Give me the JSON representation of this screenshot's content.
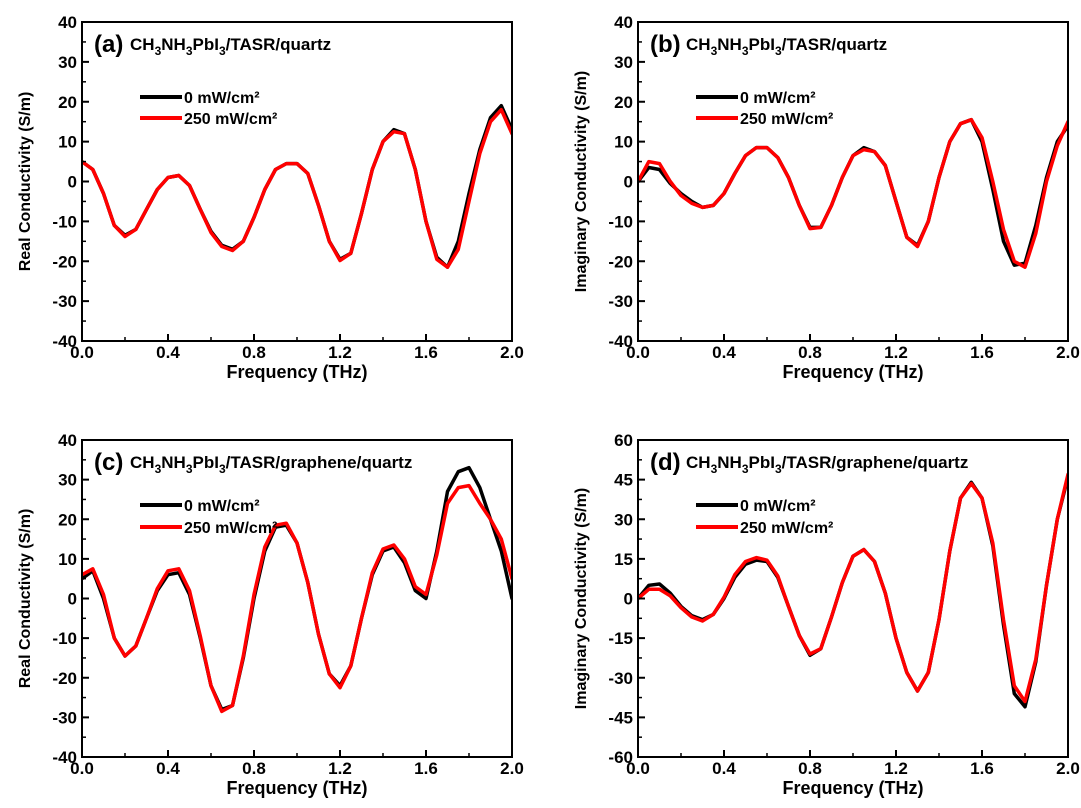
{
  "chart_data": [
    {
      "panel": "(a)",
      "type": "line",
      "title_parts": [
        "CH",
        "3",
        "NH",
        "3",
        "PbI",
        "3",
        "/TASR/quartz"
      ],
      "xlabel": "Frequency (THz)",
      "ylabel": "Real Conductivity (S/m)",
      "xlim": [
        0.0,
        2.0
      ],
      "ylim": [
        -40,
        40
      ],
      "xticks": [
        "0.0",
        "0.4",
        "0.8",
        "1.2",
        "1.6",
        "2.0"
      ],
      "yticks": [
        "-40",
        "-30",
        "-20",
        "-10",
        "0",
        "10",
        "20",
        "30",
        "40"
      ],
      "legend": [
        "0 mW/cm²",
        "250 mW/cm²"
      ],
      "series": [
        {
          "name": "0 mW/cm²",
          "color": "#000000",
          "x": [
            0.0,
            0.05,
            0.1,
            0.15,
            0.2,
            0.25,
            0.3,
            0.35,
            0.4,
            0.45,
            0.5,
            0.55,
            0.6,
            0.65,
            0.7,
            0.75,
            0.8,
            0.85,
            0.9,
            0.95,
            1.0,
            1.05,
            1.1,
            1.15,
            1.2,
            1.25,
            1.3,
            1.35,
            1.4,
            1.45,
            1.5,
            1.55,
            1.6,
            1.65,
            1.7,
            1.75,
            1.8,
            1.85,
            1.9,
            1.95,
            2.0
          ],
          "y": [
            5,
            3,
            -3,
            -11,
            -13.5,
            -12,
            -7,
            -2,
            1,
            1.5,
            -1,
            -7,
            -12.5,
            -16,
            -17,
            -15,
            -9,
            -2,
            3,
            4.5,
            4.5,
            2,
            -6,
            -15,
            -19.5,
            -18,
            -8,
            3,
            10,
            13,
            12,
            3,
            -10,
            -19,
            -21.5,
            -15,
            -3,
            8,
            16,
            19,
            13
          ]
        },
        {
          "name": "250 mW/cm²",
          "color": "#ff0000",
          "x": [
            0.0,
            0.05,
            0.1,
            0.15,
            0.2,
            0.25,
            0.3,
            0.35,
            0.4,
            0.45,
            0.5,
            0.55,
            0.6,
            0.65,
            0.7,
            0.75,
            0.8,
            0.85,
            0.9,
            0.95,
            1.0,
            1.05,
            1.1,
            1.15,
            1.2,
            1.25,
            1.3,
            1.35,
            1.4,
            1.45,
            1.5,
            1.55,
            1.6,
            1.65,
            1.7,
            1.75,
            1.8,
            1.85,
            1.9,
            1.95,
            2.0
          ],
          "y": [
            5,
            3,
            -3,
            -11,
            -13.8,
            -12,
            -7,
            -2,
            1,
            1.5,
            -1,
            -7,
            -12.8,
            -16.3,
            -17.3,
            -15,
            -9,
            -2,
            3,
            4.5,
            4.5,
            2,
            -6,
            -15,
            -19.8,
            -18,
            -8,
            3,
            10,
            12.5,
            12,
            3,
            -10,
            -19.5,
            -21.5,
            -17,
            -5,
            7,
            15,
            18,
            12
          ]
        }
      ]
    },
    {
      "panel": "(b)",
      "type": "line",
      "title_parts": [
        "CH",
        "3",
        "NH",
        "3",
        "PbI",
        "3",
        "/TASR/quartz"
      ],
      "xlabel": "Frequency (THz)",
      "ylabel": "Imaginary Conductivity (S/m)",
      "xlim": [
        0.0,
        2.0
      ],
      "ylim": [
        -40,
        40
      ],
      "xticks": [
        "0.0",
        "0.4",
        "0.8",
        "1.2",
        "1.6",
        "2.0"
      ],
      "yticks": [
        "-40",
        "-30",
        "-20",
        "-10",
        "0",
        "10",
        "20",
        "30",
        "40"
      ],
      "legend": [
        "0 mW/cm²",
        "250 mW/cm²"
      ],
      "series": [
        {
          "name": "0 mW/cm²",
          "color": "#000000",
          "x": [
            0.0,
            0.05,
            0.1,
            0.15,
            0.2,
            0.25,
            0.3,
            0.35,
            0.4,
            0.45,
            0.5,
            0.55,
            0.6,
            0.65,
            0.7,
            0.75,
            0.8,
            0.85,
            0.9,
            0.95,
            1.0,
            1.05,
            1.1,
            1.15,
            1.2,
            1.25,
            1.3,
            1.35,
            1.4,
            1.45,
            1.5,
            1.55,
            1.6,
            1.65,
            1.7,
            1.75,
            1.8,
            1.85,
            1.9,
            1.95,
            2.0
          ],
          "y": [
            0,
            3.5,
            3,
            -0.5,
            -3,
            -5,
            -6.5,
            -6,
            -3,
            2,
            6.5,
            8.5,
            8.5,
            6,
            1,
            -6,
            -11.5,
            -11.5,
            -6,
            1,
            6.5,
            8.5,
            7.5,
            4,
            -5,
            -14,
            -16,
            -10,
            1,
            10,
            14.5,
            15.5,
            10,
            -2,
            -15,
            -21,
            -20.5,
            -11,
            1,
            10,
            14
          ]
        },
        {
          "name": "250 mW/cm²",
          "color": "#ff0000",
          "x": [
            0.0,
            0.05,
            0.1,
            0.15,
            0.2,
            0.25,
            0.3,
            0.35,
            0.4,
            0.45,
            0.5,
            0.55,
            0.6,
            0.65,
            0.7,
            0.75,
            0.8,
            0.85,
            0.9,
            0.95,
            1.0,
            1.05,
            1.1,
            1.15,
            1.2,
            1.25,
            1.3,
            1.35,
            1.4,
            1.45,
            1.5,
            1.55,
            1.6,
            1.65,
            1.7,
            1.75,
            1.8,
            1.85,
            1.9,
            1.95,
            2.0
          ],
          "y": [
            0,
            5,
            4.5,
            0,
            -3.5,
            -5.5,
            -6.5,
            -6,
            -3,
            2,
            6.5,
            8.5,
            8.5,
            6,
            1,
            -6,
            -11.8,
            -11.5,
            -6,
            1,
            6.5,
            8,
            7.5,
            4,
            -5,
            -14,
            -16.3,
            -10,
            1,
            10,
            14.5,
            15.5,
            11,
            0,
            -12,
            -20,
            -21.5,
            -13,
            0,
            9,
            15
          ]
        }
      ]
    },
    {
      "panel": "(c)",
      "type": "line",
      "title_parts": [
        "CH",
        "3",
        "NH",
        "3",
        "PbI",
        "3",
        "/TASR/graphene/quartz"
      ],
      "xlabel": "Frequency (THz)",
      "ylabel": "Real Conductivity (S/m)",
      "xlim": [
        0.0,
        2.0
      ],
      "ylim": [
        -40,
        40
      ],
      "xticks": [
        "0.0",
        "0.4",
        "0.8",
        "1.2",
        "1.6",
        "2.0"
      ],
      "yticks": [
        "-40",
        "-30",
        "-20",
        "-10",
        "0",
        "10",
        "20",
        "30",
        "40"
      ],
      "legend": [
        "0 mW/cm²",
        "250 mW/cm²"
      ],
      "series": [
        {
          "name": "0 mW/cm²",
          "color": "#000000",
          "x": [
            0.0,
            0.05,
            0.1,
            0.15,
            0.2,
            0.25,
            0.3,
            0.35,
            0.4,
            0.45,
            0.5,
            0.55,
            0.6,
            0.65,
            0.7,
            0.75,
            0.8,
            0.85,
            0.9,
            0.95,
            1.0,
            1.05,
            1.1,
            1.15,
            1.2,
            1.25,
            1.3,
            1.35,
            1.4,
            1.45,
            1.5,
            1.55,
            1.6,
            1.65,
            1.7,
            1.75,
            1.8,
            1.85,
            1.9,
            1.95,
            2.0
          ],
          "y": [
            5,
            7,
            0,
            -10,
            -14.5,
            -12,
            -5,
            2,
            6,
            6.5,
            1,
            -10,
            -22,
            -28,
            -27,
            -15,
            0,
            12,
            18,
            18.5,
            14,
            4,
            -9,
            -19,
            -22,
            -17,
            -5,
            6,
            12,
            13,
            9,
            2,
            0,
            12,
            27,
            32,
            33,
            28,
            20,
            12,
            0
          ]
        },
        {
          "name": "250 mW/cm²",
          "color": "#ff0000",
          "x": [
            0.0,
            0.05,
            0.1,
            0.15,
            0.2,
            0.25,
            0.3,
            0.35,
            0.4,
            0.45,
            0.5,
            0.55,
            0.6,
            0.65,
            0.7,
            0.75,
            0.8,
            0.85,
            0.9,
            0.95,
            1.0,
            1.05,
            1.1,
            1.15,
            1.2,
            1.25,
            1.3,
            1.35,
            1.4,
            1.45,
            1.5,
            1.55,
            1.6,
            1.65,
            1.7,
            1.75,
            1.8,
            1.85,
            1.9,
            1.95,
            2.0
          ],
          "y": [
            6,
            7.5,
            1,
            -10,
            -14.5,
            -12,
            -5,
            2.5,
            7,
            7.5,
            2,
            -9.5,
            -22,
            -28.5,
            -27,
            -14.5,
            1,
            13,
            18.5,
            19,
            14,
            4,
            -9,
            -19,
            -22.5,
            -17,
            -5,
            6.5,
            12.5,
            13.5,
            10,
            3,
            1,
            11,
            24,
            28,
            28.5,
            24,
            20,
            15,
            5
          ]
        }
      ]
    },
    {
      "panel": "(d)",
      "type": "line",
      "title_parts": [
        "CH",
        "3",
        "NH",
        "3",
        "PbI",
        "3",
        "/TASR/graphene/quartz"
      ],
      "xlabel": "Frequency (THz)",
      "ylabel": "Imaginary Conductivity (S/m)",
      "xlim": [
        0.0,
        2.0
      ],
      "ylim": [
        -60,
        60
      ],
      "xticks": [
        "0.0",
        "0.4",
        "0.8",
        "1.2",
        "1.6",
        "2.0"
      ],
      "yticks": [
        "-60",
        "-45",
        "-30",
        "-15",
        "0",
        "15",
        "30",
        "45",
        "60"
      ],
      "legend": [
        "0 mW/cm²",
        "250 mW/cm²"
      ],
      "series": [
        {
          "name": "0 mW/cm²",
          "color": "#000000",
          "x": [
            0.0,
            0.05,
            0.1,
            0.15,
            0.2,
            0.25,
            0.3,
            0.35,
            0.4,
            0.45,
            0.5,
            0.55,
            0.6,
            0.65,
            0.7,
            0.75,
            0.8,
            0.85,
            0.9,
            0.95,
            1.0,
            1.05,
            1.1,
            1.15,
            1.2,
            1.25,
            1.3,
            1.35,
            1.4,
            1.45,
            1.5,
            1.55,
            1.6,
            1.65,
            1.7,
            1.75,
            1.8,
            1.85,
            1.9,
            1.95,
            2.0
          ],
          "y": [
            0,
            5,
            5.5,
            2,
            -3,
            -6.5,
            -8,
            -6,
            0,
            8,
            13,
            14.5,
            14,
            8,
            -3,
            -14,
            -21.5,
            -19,
            -7,
            6,
            16,
            18.5,
            14,
            2,
            -15,
            -28,
            -35,
            -28,
            -8,
            18,
            38,
            44,
            38,
            20,
            -10,
            -36,
            -41,
            -24,
            5,
            30,
            46
          ]
        },
        {
          "name": "250 mW/cm²",
          "color": "#ff0000",
          "x": [
            0.0,
            0.05,
            0.1,
            0.15,
            0.2,
            0.25,
            0.3,
            0.35,
            0.4,
            0.45,
            0.5,
            0.55,
            0.6,
            0.65,
            0.7,
            0.75,
            0.8,
            0.85,
            0.9,
            0.95,
            1.0,
            1.05,
            1.1,
            1.15,
            1.2,
            1.25,
            1.3,
            1.35,
            1.4,
            1.45,
            1.5,
            1.55,
            1.6,
            1.65,
            1.7,
            1.75,
            1.8,
            1.85,
            1.9,
            1.95,
            2.0
          ],
          "y": [
            0,
            3.5,
            3.5,
            1,
            -3.5,
            -7,
            -8.5,
            -6,
            0.5,
            9,
            14,
            15.5,
            14.5,
            8.5,
            -3,
            -14,
            -21,
            -19,
            -7,
            6,
            16,
            18.5,
            14,
            2,
            -15,
            -28,
            -35,
            -28,
            -8,
            18,
            38,
            43.5,
            38,
            21,
            -8,
            -33,
            -39,
            -23,
            5,
            30,
            47
          ]
        }
      ]
    }
  ]
}
